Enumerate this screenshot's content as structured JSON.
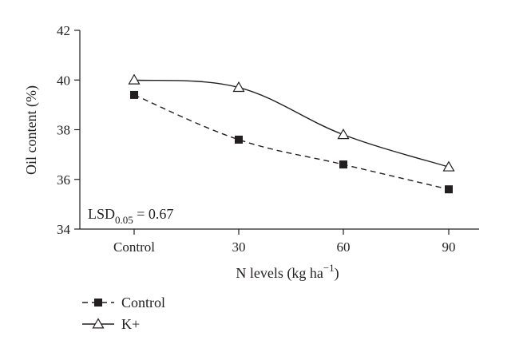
{
  "chart_data": {
    "type": "line",
    "categories": [
      "Control",
      "30",
      "60",
      "90"
    ],
    "series": [
      {
        "name": "Control",
        "values": [
          39.4,
          37.6,
          36.6,
          35.6
        ],
        "marker": "filled-square",
        "line_style": "dashed",
        "color": "#231f20"
      },
      {
        "name": "K+",
        "values": [
          40.0,
          39.7,
          37.8,
          36.5
        ],
        "marker": "open-triangle",
        "line_style": "solid",
        "color": "#231f20"
      }
    ],
    "xlabel": "N levels (kg ha",
    "xlabel_sup": "−1",
    "xlabel_end": ")",
    "ylabel": "Oil content (%)",
    "ylim": [
      34,
      42
    ],
    "yticks": [
      "34",
      "36",
      "38",
      "40",
      "42"
    ],
    "annotation": {
      "text": "LSD",
      "subscript": "0.05",
      "value_text": " = 0.67"
    },
    "grid": false,
    "legend_position": "bottom-left"
  }
}
